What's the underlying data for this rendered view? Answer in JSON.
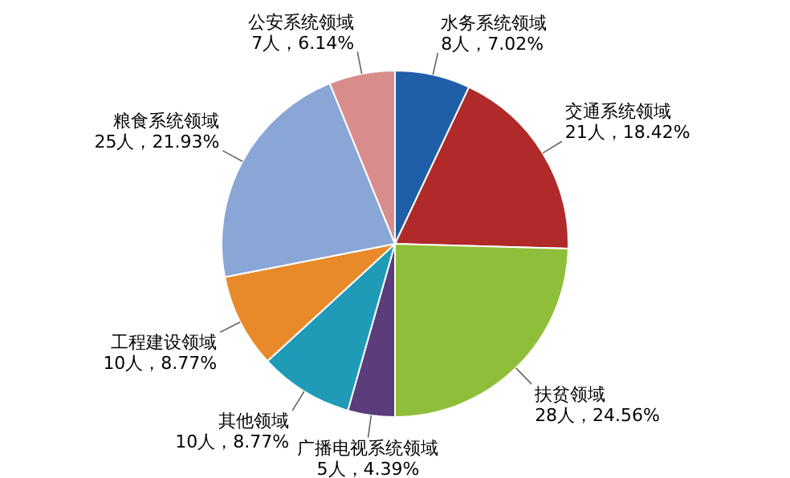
{
  "chart_data": {
    "type": "pie",
    "categories": [
      "水务系统领域",
      "交通系统领域",
      "扶贫领域",
      "广播电视系统领域",
      "其他领域",
      "工程建设领域",
      "粮食系统领域",
      "公安系统领域"
    ],
    "values": [
      8,
      21,
      28,
      5,
      10,
      10,
      25,
      7
    ],
    "value_labels": [
      "8人，7.02%",
      "21人，18.42%",
      "28人，24.56%",
      "5人，4.39%",
      "10人，8.77%",
      "10人，8.77%",
      "25人，21.93%",
      "7人，6.14%"
    ],
    "colors": [
      "#1f5fa8",
      "#b02a2a",
      "#8fbf3a",
      "#5a3d7a",
      "#1f9bb8",
      "#e88a2a",
      "#8aa6d6",
      "#d98c8c"
    ]
  }
}
